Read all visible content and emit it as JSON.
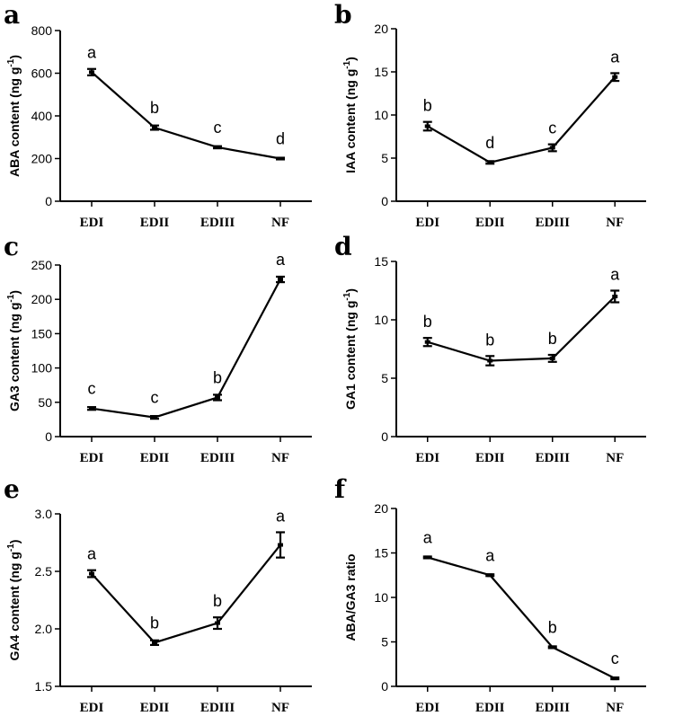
{
  "chart_data": [
    {
      "panel": "a",
      "type": "line",
      "categories": [
        "EDI",
        "EDII",
        "EDIII",
        "NF"
      ],
      "values": [
        605,
        345,
        253,
        200
      ],
      "errors": [
        15,
        10,
        5,
        4
      ],
      "labels": [
        "a",
        "b",
        "c",
        "d"
      ],
      "ylabel": "ABA content (ng g-1)",
      "ylabel_main": "ABA content (ng g",
      "ylabel_sup": "-1",
      "ylabel_end": ")",
      "ylim": [
        0,
        800
      ],
      "yticks": [
        0,
        200,
        400,
        600,
        800
      ],
      "ytick_labels": [
        "0",
        "200",
        "400",
        "600",
        "800"
      ]
    },
    {
      "panel": "b",
      "type": "line",
      "categories": [
        "EDI",
        "EDII",
        "EDIII",
        "NF"
      ],
      "values": [
        8.7,
        4.5,
        6.2,
        14.4
      ],
      "errors": [
        0.5,
        0.15,
        0.4,
        0.45
      ],
      "labels": [
        "b",
        "d",
        "c",
        "a"
      ],
      "ylabel": "IAA content (ng g-1)",
      "ylabel_main": "IAA content (ng g",
      "ylabel_sup": "-1",
      "ylabel_end": ")",
      "ylim": [
        0,
        20
      ],
      "yticks": [
        0,
        5,
        10,
        15,
        20
      ],
      "ytick_labels": [
        "0",
        "5",
        "10",
        "15",
        "20"
      ]
    },
    {
      "panel": "c",
      "type": "line",
      "categories": [
        "EDI",
        "EDII",
        "EDIII",
        "NF"
      ],
      "values": [
        41,
        28,
        57,
        229
      ],
      "errors": [
        2,
        2,
        4,
        4
      ],
      "labels": [
        "c",
        "c",
        "b",
        "a"
      ],
      "ylabel": "GA3 content (ng g-1)",
      "ylabel_main": "GA3 content (ng g",
      "ylabel_sup": "-1",
      "ylabel_end": ")",
      "ylim": [
        0,
        250
      ],
      "yticks": [
        0,
        50,
        100,
        150,
        200,
        250
      ],
      "ytick_labels": [
        "0",
        "50",
        "100",
        "150",
        "200",
        "250"
      ]
    },
    {
      "panel": "d",
      "type": "line",
      "categories": [
        "EDI",
        "EDII",
        "EDIII",
        "NF"
      ],
      "values": [
        8.1,
        6.5,
        6.7,
        12.0
      ],
      "errors": [
        0.35,
        0.4,
        0.3,
        0.5
      ],
      "labels": [
        "b",
        "b",
        "b",
        "a"
      ],
      "ylabel": "GA1 content (ng g-1)",
      "ylabel_main": "GA1 content (ng g",
      "ylabel_sup": "-1",
      "ylabel_end": ")",
      "ylim": [
        0,
        15
      ],
      "yticks": [
        0,
        5,
        10,
        15
      ],
      "ytick_labels": [
        "0",
        "5",
        "10",
        "15"
      ]
    },
    {
      "panel": "e",
      "type": "line",
      "categories": [
        "EDI",
        "EDII",
        "EDIII",
        "NF"
      ],
      "values": [
        2.48,
        1.88,
        2.05,
        2.73
      ],
      "errors": [
        0.03,
        0.02,
        0.05,
        0.11
      ],
      "labels": [
        "a",
        "b",
        "b",
        "a"
      ],
      "ylabel": "GA4 content (ng g-1)",
      "ylabel_main": "GA4 content (ng g",
      "ylabel_sup": "-1",
      "ylabel_end": ")",
      "ylim": [
        1.5,
        3.0
      ],
      "yticks": [
        1.5,
        2.0,
        2.5,
        3.0
      ],
      "ytick_labels": [
        "1.5",
        "2.0",
        "2.5",
        "3.0"
      ]
    },
    {
      "panel": "f",
      "type": "line",
      "categories": [
        "EDI",
        "EDII",
        "EDIII",
        "NF"
      ],
      "values": [
        14.5,
        12.5,
        4.4,
        0.9
      ],
      "errors": [
        0.1,
        0.1,
        0.1,
        0.1
      ],
      "labels": [
        "a",
        "a",
        "b",
        "c"
      ],
      "ylabel": "ABA/GA3 ratio",
      "ylabel_main": "ABA/GA3 ratio",
      "ylabel_sup": "",
      "ylabel_end": "",
      "ylim": [
        0,
        20
      ],
      "yticks": [
        0,
        5,
        10,
        15,
        20
      ],
      "ytick_labels": [
        "0",
        "5",
        "10",
        "15",
        "20"
      ]
    }
  ]
}
